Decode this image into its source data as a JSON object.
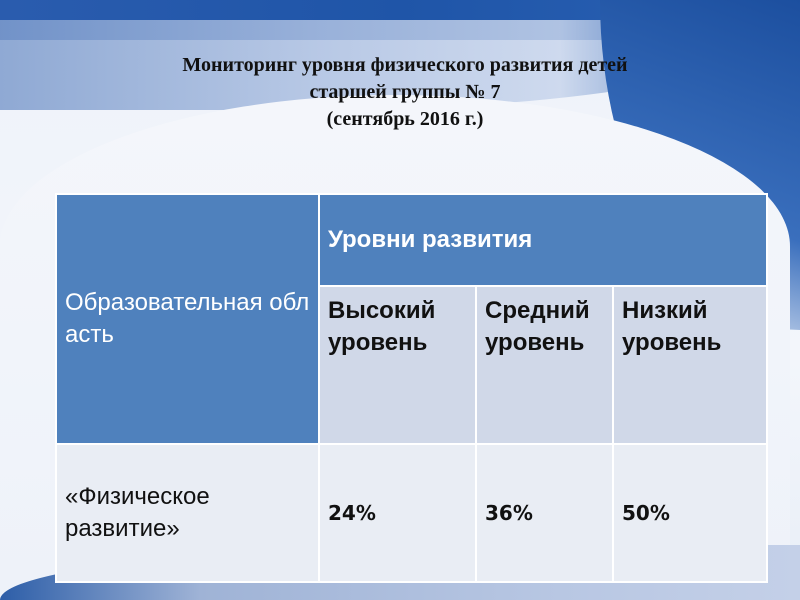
{
  "slide": {
    "title_lines": [
      "Мониторинг уровня физического развития детей",
      "старшей группы № 7",
      "(сентябрь 2016 г.)"
    ]
  },
  "table": {
    "area_header": "Образовательная область",
    "levels_header": "Уровни развития",
    "columns": [
      "Высокий уровень",
      "Средний уровень",
      "Низкий уровень"
    ],
    "rows": [
      {
        "area": "«Физическое развитие»",
        "values": [
          "24%",
          "36%",
          "50%"
        ]
      }
    ]
  },
  "colors": {
    "header": "#4f81bd",
    "subheader": "#d0d8e8",
    "body": "#e9edf4"
  }
}
